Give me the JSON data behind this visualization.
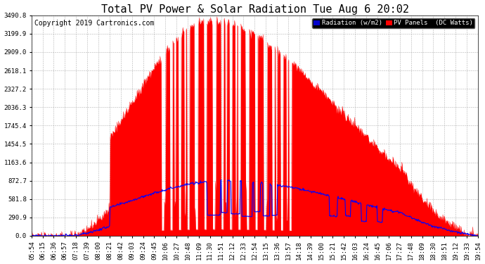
{
  "title": "Total PV Power & Solar Radiation Tue Aug 6 20:02",
  "copyright": "Copyright 2019 Cartronics.com",
  "legend_labels": [
    "Radiation (w/m2)",
    "PV Panels  (DC Watts)"
  ],
  "legend_colors": [
    "#0000ff",
    "#ff0000"
  ],
  "y_ticks": [
    0.0,
    290.9,
    581.8,
    872.7,
    1163.6,
    1454.5,
    1745.4,
    2036.3,
    2327.2,
    2618.1,
    2909.0,
    3199.9,
    3490.8
  ],
  "background_color": "#ffffff",
  "plot_bg_color": "#ffffff",
  "grid_color": "#aaaaaa",
  "pv_color": "#ff0000",
  "radiation_color": "#0000ff",
  "x_tick_labels": [
    "05:54",
    "06:15",
    "06:36",
    "06:57",
    "07:18",
    "07:39",
    "08:00",
    "08:21",
    "08:42",
    "09:03",
    "09:24",
    "09:45",
    "10:06",
    "10:27",
    "10:48",
    "11:09",
    "11:30",
    "11:51",
    "12:12",
    "12:33",
    "12:54",
    "13:15",
    "13:36",
    "13:57",
    "14:18",
    "14:39",
    "15:00",
    "15:21",
    "15:42",
    "16:03",
    "16:24",
    "16:45",
    "17:06",
    "17:27",
    "17:48",
    "18:09",
    "18:30",
    "18:51",
    "19:12",
    "19:33",
    "19:54"
  ],
  "title_fontsize": 11,
  "copyright_fontsize": 7,
  "axis_fontsize": 6.5,
  "ymax": 3490.8,
  "n_points": 840
}
